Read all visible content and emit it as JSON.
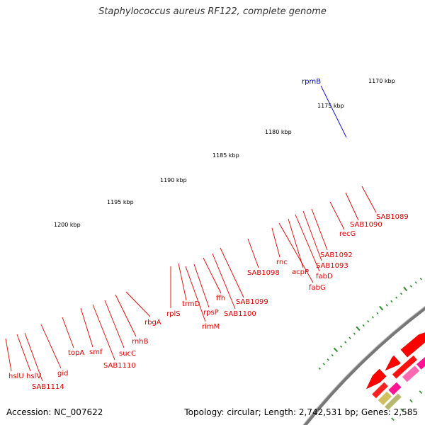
{
  "title": "Staphylococcus aureus RF122, complete genome",
  "footer": {
    "accession": "Accession: NC_007622",
    "summary": "Topology: circular; Length: 2,742,531 bp; Genes: 2,585"
  },
  "colors": {
    "gene_label": "#dd0000",
    "highlight_label": "#0000cc",
    "backbone": "#777777",
    "scale_marks": "#2e8b2e"
  },
  "scale_labels": [
    "1170 kbp",
    "1175 kbp",
    "1180 kbp",
    "1185 kbp",
    "1190 kbp",
    "1195 kbp",
    "1200 kbp"
  ],
  "gene_labels": [
    "rpmB",
    "SAB1089",
    "SAB1090",
    "recG",
    "SAB1092",
    "SAB1093",
    "fabD",
    "acpP",
    "fabG",
    "rnc",
    "SAB1098",
    "SAB1099",
    "ffh",
    "SAB1100",
    "rpsP",
    "trmD",
    "rimM",
    "rplS",
    "rbgA",
    "rnhB",
    "sucC",
    "SAB1110",
    "smf",
    "topA",
    "gid",
    "SAB1114",
    "hslV",
    "hslU"
  ]
}
